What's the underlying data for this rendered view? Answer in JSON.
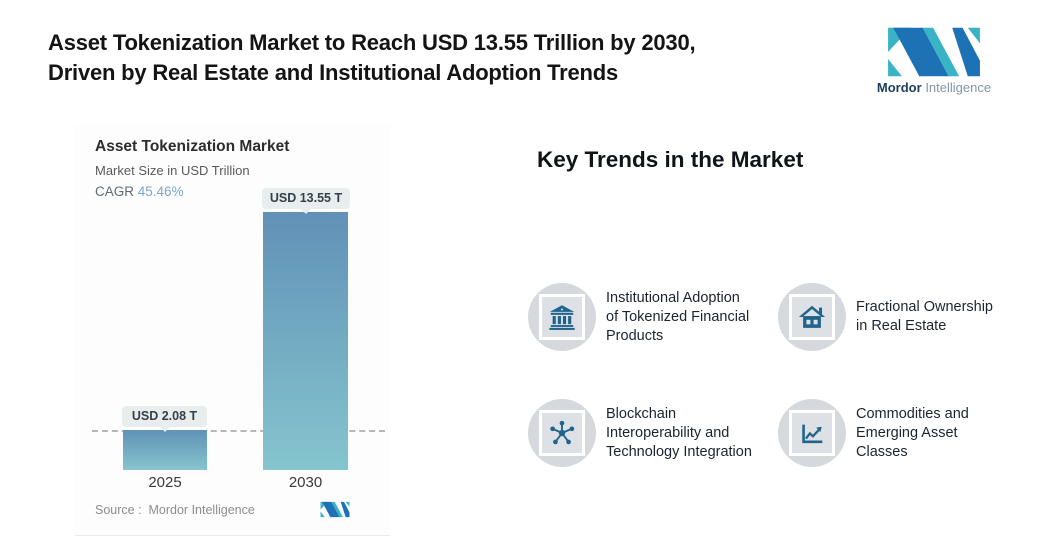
{
  "header": {
    "title_line1": "Asset Tokenization Market to Reach USD 13.55 Trillion by 2030,",
    "title_line2": "Driven by Real Estate and Institutional Adoption Trends",
    "brand": {
      "name_bold": "Mordor",
      "name_light": "Intelligence"
    }
  },
  "chart": {
    "title": "Asset Tokenization Market",
    "subtitle": "Market Size in USD Trillion",
    "cagr_label": "CAGR",
    "cagr_value": "45.46%",
    "source_label": "Source :  Mordor Intelligence"
  },
  "chart_data": {
    "type": "bar",
    "title": "Asset Tokenization Market",
    "subtitle": "Market Size in USD Trillion",
    "categories": [
      "2025",
      "2030"
    ],
    "values": [
      2.08,
      13.55
    ],
    "bar_labels": [
      "USD 2.08 T",
      "USD 13.55 T"
    ],
    "cagr": "45.46%",
    "ylim": [
      0,
      13.55
    ],
    "ylabel": "USD Trillion",
    "grid": "off",
    "annotations": [
      "dashed horizontal reference line at 2025 value"
    ],
    "colors": {
      "bar_gradient_top": "#6191b7",
      "bar_gradient_bottom": "#85c5ce",
      "label_pill_bg": "#e8edee",
      "cagr_value_text": "#7ba6c9",
      "dashed_line": "#b5b8bb"
    }
  },
  "trends": {
    "heading": "Key Trends in the Market",
    "icon_colors": {
      "glyph": "#20648c",
      "circle_bg": "#d5d9dd",
      "square_bg": "#dde1e5"
    },
    "items": [
      {
        "icon": "bank-icon",
        "text": "Institutional Adoption\nof Tokenized Financial\nProducts"
      },
      {
        "icon": "home-icon",
        "text": "Fractional Ownership\nin Real Estate"
      },
      {
        "icon": "network-icon",
        "text": "Blockchain\nInteroperability and\nTechnology Integration"
      },
      {
        "icon": "chart-icon",
        "text": "Commodities and\nEmerging Asset\nClasses"
      }
    ]
  },
  "brand_colors": {
    "teal": "#3ab3c5",
    "blue": "#1d71b5"
  }
}
